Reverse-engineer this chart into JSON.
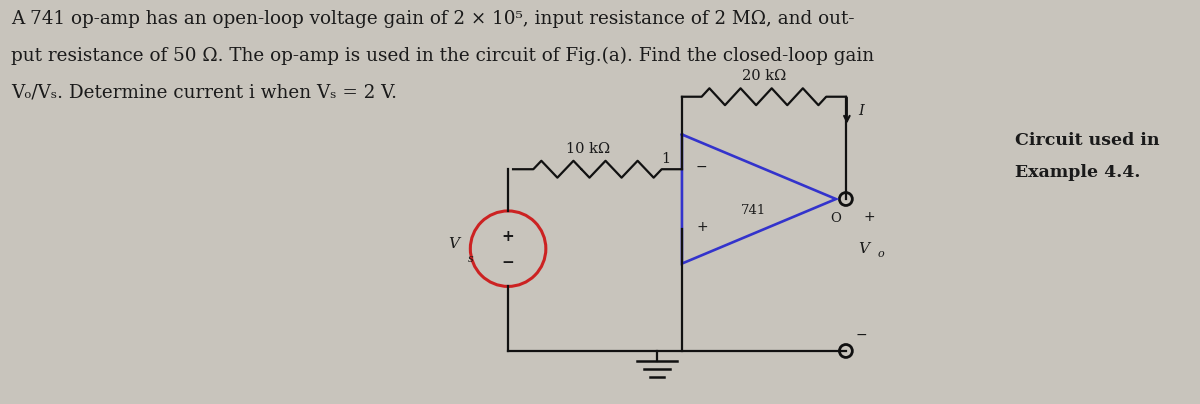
{
  "bg_color": "#c8c4bc",
  "text_color": "#1a1a1a",
  "title_line1": "A 741 op-amp has an open-loop voltage gain of 2 × 10⁵, input resistance of 2 MΩ, and out-",
  "title_line2": "put resistance of 50 Ω. The op-amp is used in the circuit of Fig.(a). Find the closed-loop gain",
  "title_line3": "Vₒ/Vₛ. Determine current i when Vₛ = 2 V.",
  "caption_line1": "Circuit used in",
  "caption_line2": "Example 4.4.",
  "label_20k": "20 kΩ",
  "label_10k": "10 kΩ",
  "label_741": "741",
  "label_1": "1",
  "label_I": "I",
  "label_O": "O",
  "label_Vs": "V",
  "label_Vs_sub": "s",
  "label_Vo": "V",
  "label_Vo_sub": "o",
  "circuit_color": "#3333cc",
  "wire_color": "#111111",
  "source_color": "#cc2222"
}
